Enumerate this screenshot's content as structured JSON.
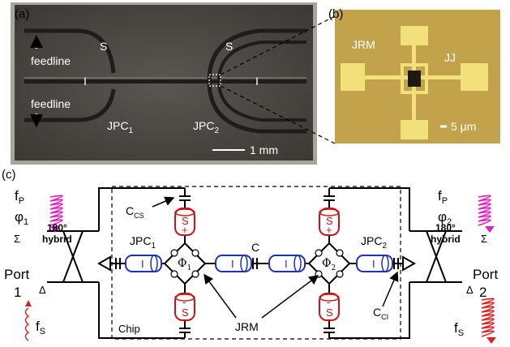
{
  "panels": {
    "a": "(a)",
    "b": "(b)",
    "c": "(c)"
  },
  "photo_a": {
    "s_left": "S",
    "s_right": "S",
    "i_left": "I",
    "i_right": "I",
    "feedline_top": "feedline",
    "feedline_bottom": "feedline",
    "jpc1_main": "JPC",
    "jpc1_sub": "1",
    "jpc2_main": "JPC",
    "jpc2_sub": "2",
    "scale": "1 mm"
  },
  "micro_b": {
    "jrm": "JRM",
    "jj": "JJ",
    "scale": "5 μm"
  },
  "circuit_c": {
    "fp_left_main": "f",
    "fp_left_sub": "P",
    "phi_left_main": "φ",
    "phi_left_sub": "1",
    "fp_right_main": "f",
    "fp_right_sub": "P",
    "phi_right_main": "φ",
    "phi_right_sub": "2",
    "hybrid_left_1": "180°",
    "hybrid_left_2": "hybrid",
    "hybrid_right_1": "180°",
    "hybrid_right_2": "hybrid",
    "sigma": "Σ",
    "delta": "Δ",
    "port1_a": "Port",
    "port1_b": "1",
    "port2_a": "Port",
    "port2_b": "2",
    "fs_left_main": "f",
    "fs_left_sub": "S",
    "fs_right_main": "f",
    "fs_right_sub": "S",
    "ccs_main": "C",
    "ccs_sub": "CS",
    "cci_main": "C",
    "cci_sub": "CI",
    "c_coupling": "C",
    "jpc1_main": "JPC",
    "jpc1_sub": "1",
    "jpc2_main": "JPC",
    "jpc2_sub": "2",
    "phi1_main": "Φ",
    "phi1_sub": "1",
    "phi2_main": "Φ",
    "phi2_sub": "2",
    "jrm": "JRM",
    "chip": "Chip",
    "res_i": "I",
    "res_s": "S",
    "plus": "+",
    "minus": "-"
  },
  "colors": {
    "pump": "#e020c0",
    "signal": "#e02020",
    "idler_resonator": "#1f2fbf",
    "signal_resonator": "#d11111",
    "photo_bg": "#54504b",
    "micro_bg": "#c2a24b",
    "gold": "#f2e07a"
  }
}
